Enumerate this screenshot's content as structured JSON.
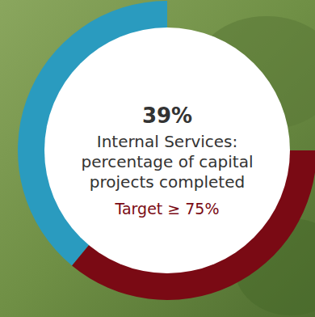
{
  "chart_data": {
    "type": "donut",
    "title": "Internal Services: percentage of capital projects completed",
    "values": [
      39
    ],
    "value_labels": [
      "39%"
    ],
    "target": 75,
    "target_label": "Target ≥ 75%",
    "ylim": [
      0,
      100
    ],
    "colors": [
      "#2a9bbf",
      "#7a0a14"
    ]
  }
}
